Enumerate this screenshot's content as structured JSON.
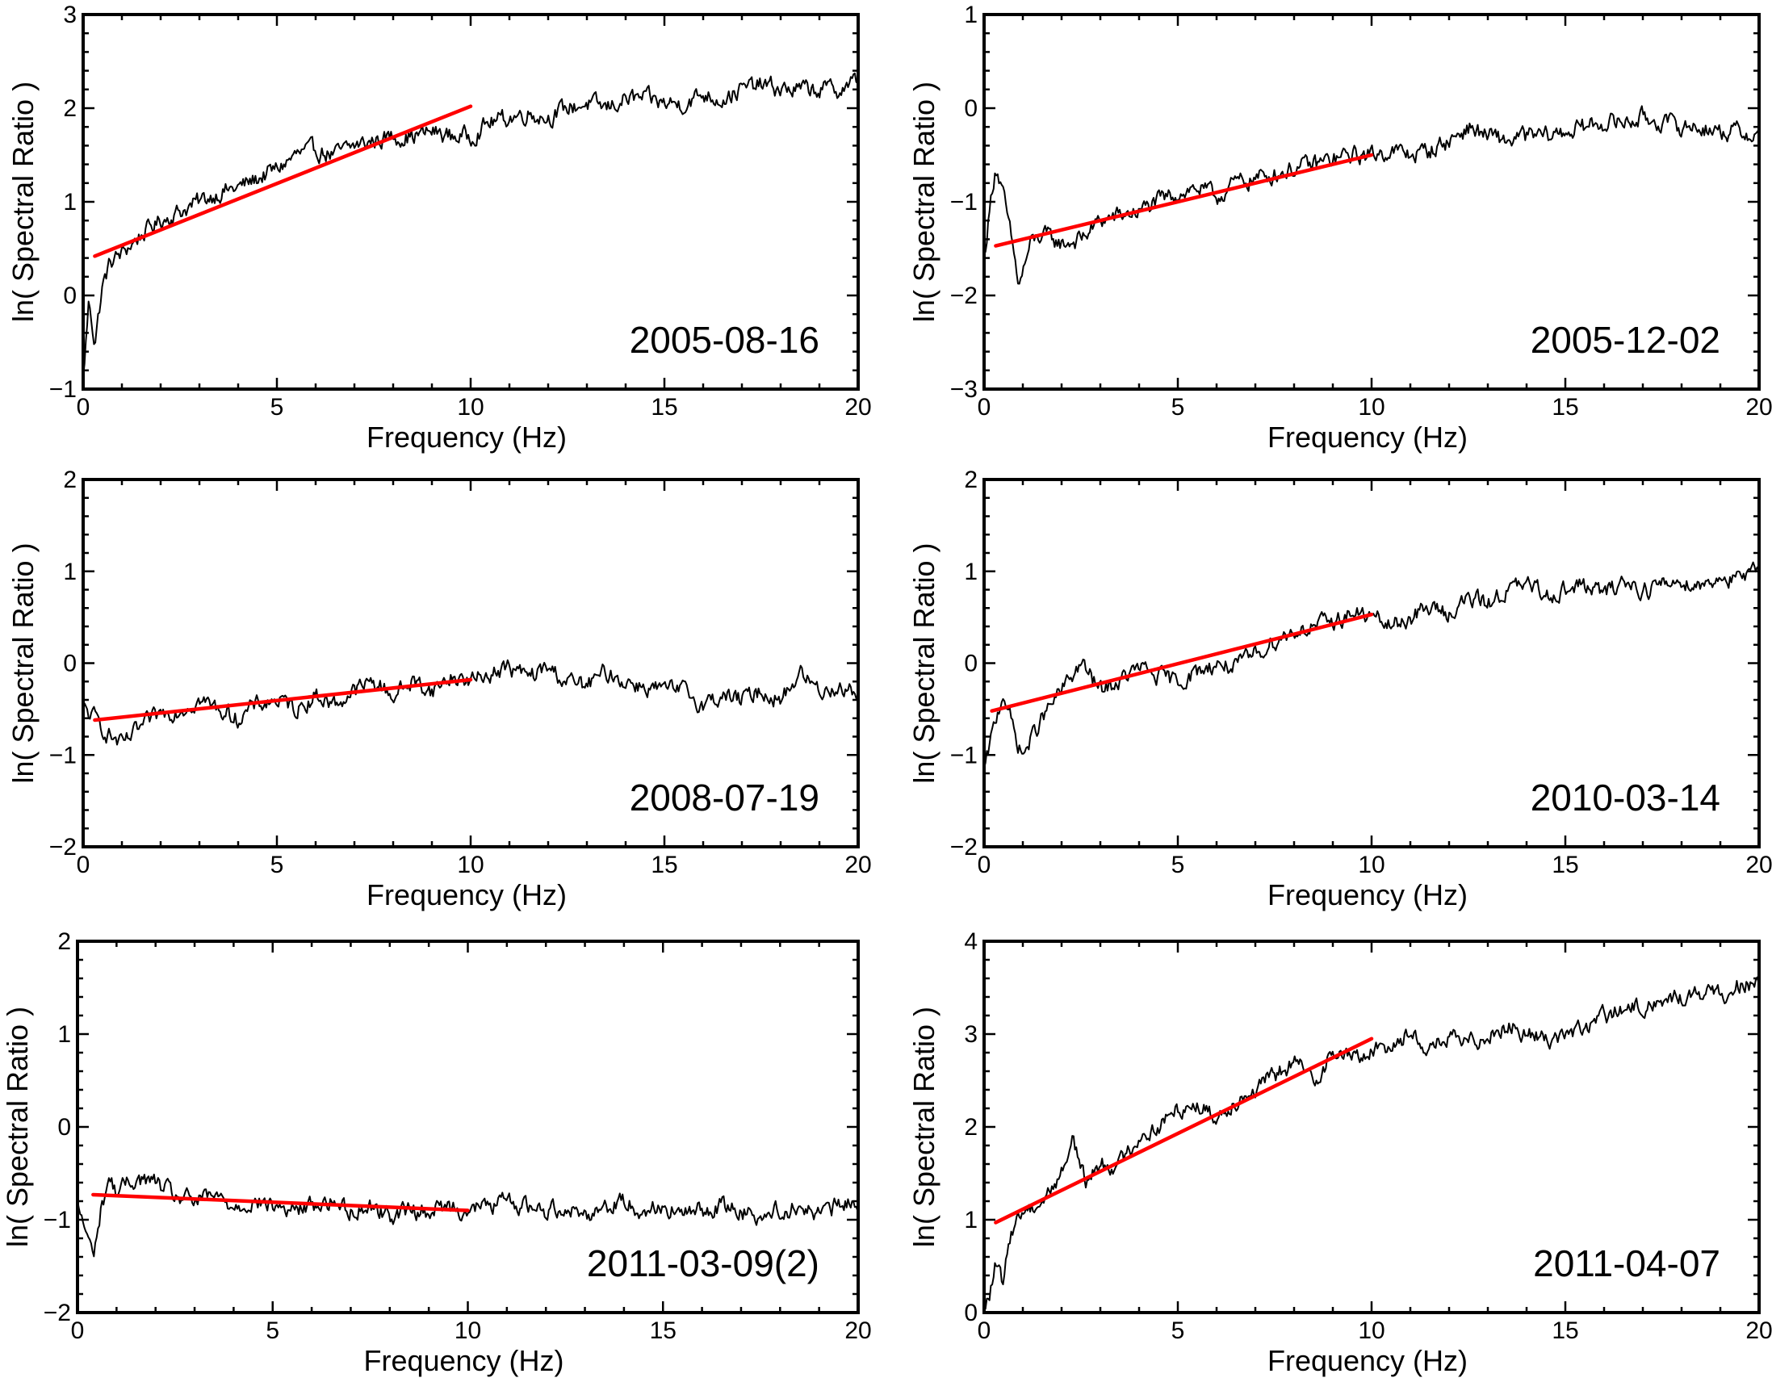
{
  "figure": {
    "xlabel": "Frequency (Hz)",
    "ylabel": "ln( Spectral Ratio )"
  },
  "chart_data": [
    {
      "type": "line",
      "annotation": "2005-08-16",
      "xlabel": "Frequency (Hz)",
      "ylabel": "ln( Spectral Ratio )",
      "xlim": [
        0,
        20
      ],
      "ylim": [
        -1,
        3
      ],
      "xticks": [
        0,
        5,
        10,
        15,
        20
      ],
      "yticks": [
        -1,
        0,
        1,
        2,
        3
      ],
      "grid": false,
      "series": [
        {
          "role": "spectral-ratio",
          "color": "#000000",
          "x": [
            0,
            0.15,
            0.3,
            0.5,
            0.7,
            1,
            1.5,
            2,
            2.5,
            3,
            3.5,
            4,
            4.5,
            5,
            5.5,
            6,
            6.5,
            7,
            7.5,
            8,
            8.5,
            9,
            9.5,
            10,
            10.5,
            11,
            11.5,
            12,
            12.5,
            13,
            13.5,
            14,
            14.5,
            15,
            15.5,
            16,
            16.5,
            17,
            17.5,
            18,
            18.5,
            19,
            19.5,
            20
          ],
          "y": [
            -0.9,
            -0.05,
            -0.5,
            0.1,
            0.35,
            0.45,
            0.65,
            0.8,
            0.9,
            1.0,
            1.1,
            1.15,
            1.25,
            1.35,
            1.5,
            1.55,
            1.5,
            1.6,
            1.65,
            1.7,
            1.7,
            1.75,
            1.7,
            1.7,
            1.85,
            1.9,
            1.95,
            1.9,
            2.0,
            2.05,
            2.0,
            2.1,
            2.1,
            2.05,
            2.05,
            2.15,
            2.1,
            2.2,
            2.25,
            2.2,
            2.2,
            2.2,
            2.2,
            2.3
          ]
        },
        {
          "role": "linear-fit",
          "color": "#ff0000",
          "x": [
            0.3,
            10
          ],
          "y": [
            0.42,
            2.02
          ]
        }
      ]
    },
    {
      "type": "line",
      "annotation": "2005-12-02",
      "xlabel": "Frequency (Hz)",
      "ylabel": "ln( Spectral Ratio )",
      "xlim": [
        0,
        20
      ],
      "ylim": [
        -3,
        1
      ],
      "xticks": [
        0,
        5,
        10,
        15,
        20
      ],
      "yticks": [
        -3,
        -2,
        -1,
        0,
        1
      ],
      "grid": false,
      "series": [
        {
          "role": "spectral-ratio",
          "color": "#000000",
          "x": [
            0,
            0.2,
            0.3,
            0.5,
            0.7,
            0.9,
            1.2,
            1.5,
            2,
            2.5,
            3,
            3.5,
            4,
            4.5,
            5,
            5.5,
            6,
            6.5,
            7,
            7.5,
            8,
            8.5,
            9,
            9.5,
            10,
            10.5,
            11,
            11.5,
            12,
            12.5,
            13,
            13.5,
            14,
            14.5,
            15,
            15.5,
            16,
            16.5,
            17,
            17.5,
            18,
            18.5,
            19,
            19.5,
            20
          ],
          "y": [
            -1.6,
            -0.9,
            -0.6,
            -0.95,
            -1.4,
            -1.9,
            -1.45,
            -1.35,
            -1.45,
            -1.4,
            -1.2,
            -1.15,
            -1.1,
            -1.0,
            -0.9,
            -0.85,
            -0.95,
            -0.8,
            -0.75,
            -0.7,
            -0.65,
            -0.6,
            -0.55,
            -0.5,
            -0.5,
            -0.45,
            -0.5,
            -0.45,
            -0.35,
            -0.2,
            -0.3,
            -0.35,
            -0.3,
            -0.3,
            -0.25,
            -0.2,
            -0.15,
            -0.15,
            -0.1,
            -0.15,
            -0.2,
            -0.2,
            -0.25,
            -0.25,
            -0.3
          ]
        },
        {
          "role": "linear-fit",
          "color": "#ff0000",
          "x": [
            0.3,
            10
          ],
          "y": [
            -1.47,
            -0.5
          ]
        }
      ]
    },
    {
      "type": "line",
      "annotation": "2008-07-19",
      "xlabel": "Frequency (Hz)",
      "ylabel": "ln( Spectral Ratio )",
      "xlim": [
        0,
        20
      ],
      "ylim": [
        -2,
        2
      ],
      "xticks": [
        0,
        5,
        10,
        15,
        20
      ],
      "yticks": [
        -2,
        -1,
        0,
        1,
        2
      ],
      "grid": false,
      "series": [
        {
          "role": "spectral-ratio",
          "color": "#000000",
          "x": [
            0,
            0.3,
            0.6,
            1,
            1.5,
            2,
            2.5,
            3,
            3.5,
            4,
            4.5,
            5,
            5.5,
            6,
            6.5,
            7,
            7.5,
            8,
            8.5,
            9,
            9.5,
            10,
            10.5,
            11,
            11.5,
            12,
            12.5,
            13,
            13.5,
            14,
            14.5,
            15,
            15.5,
            16,
            16.5,
            17,
            17.5,
            18,
            18.5,
            19,
            19.5,
            20
          ],
          "y": [
            -0.5,
            -0.6,
            -0.75,
            -0.9,
            -0.7,
            -0.55,
            -0.5,
            -0.4,
            -0.5,
            -0.6,
            -0.45,
            -0.4,
            -0.5,
            -0.35,
            -0.45,
            -0.3,
            -0.2,
            -0.35,
            -0.2,
            -0.3,
            -0.15,
            -0.2,
            -0.1,
            -0.05,
            -0.15,
            -0.05,
            -0.2,
            -0.25,
            -0.1,
            -0.2,
            -0.25,
            -0.3,
            -0.3,
            -0.45,
            -0.35,
            -0.4,
            -0.3,
            -0.4,
            -0.1,
            -0.3,
            -0.25,
            -0.35
          ]
        },
        {
          "role": "linear-fit",
          "color": "#ff0000",
          "x": [
            0.3,
            10
          ],
          "y": [
            -0.62,
            -0.18
          ]
        }
      ]
    },
    {
      "type": "line",
      "annotation": "2010-03-14",
      "xlabel": "Frequency (Hz)",
      "ylabel": "ln( Spectral Ratio )",
      "xlim": [
        0,
        20
      ],
      "ylim": [
        -2,
        2
      ],
      "xticks": [
        0,
        5,
        10,
        15,
        20
      ],
      "yticks": [
        -2,
        -1,
        0,
        1,
        2
      ],
      "grid": false,
      "series": [
        {
          "role": "spectral-ratio",
          "color": "#000000",
          "x": [
            0,
            0.2,
            0.5,
            0.8,
            1,
            1.5,
            2,
            2.5,
            3,
            3.5,
            4,
            4.5,
            5,
            5.5,
            6,
            6.5,
            7,
            7.5,
            8,
            8.5,
            9,
            9.5,
            10,
            10.5,
            11,
            11.5,
            12,
            12.5,
            13,
            13.5,
            14,
            14.5,
            15,
            15.5,
            16,
            16.5,
            17,
            17.5,
            18,
            18.5,
            19,
            19.5,
            20
          ],
          "y": [
            -1.2,
            -0.8,
            -0.3,
            -0.8,
            -1.0,
            -0.6,
            -0.3,
            0.0,
            -0.3,
            -0.2,
            -0.05,
            -0.15,
            -0.2,
            -0.1,
            0.0,
            -0.05,
            0.1,
            0.25,
            0.35,
            0.4,
            0.45,
            0.55,
            0.5,
            0.4,
            0.5,
            0.6,
            0.55,
            0.7,
            0.65,
            0.8,
            0.85,
            0.75,
            0.8,
            0.85,
            0.75,
            0.9,
            0.8,
            0.85,
            0.9,
            0.85,
            0.95,
            0.9,
            1.0
          ]
        },
        {
          "role": "linear-fit",
          "color": "#ff0000",
          "x": [
            0.2,
            10
          ],
          "y": [
            -0.52,
            0.53
          ]
        }
      ]
    },
    {
      "type": "line",
      "annotation": "2011-03-09(2)",
      "xlabel": "Frequency (Hz)",
      "ylabel": "ln( Spectral Ratio )",
      "xlim": [
        0,
        20
      ],
      "ylim": [
        -2,
        2
      ],
      "xticks": [
        0,
        5,
        10,
        15,
        20
      ],
      "yticks": [
        -2,
        -1,
        0,
        1,
        2
      ],
      "grid": false,
      "series": [
        {
          "role": "spectral-ratio",
          "color": "#000000",
          "x": [
            0,
            0.2,
            0.4,
            0.6,
            0.8,
            1,
            1.5,
            2,
            2.5,
            3,
            3.5,
            4,
            4.5,
            5,
            5.5,
            6,
            6.5,
            7,
            7.5,
            8,
            8.5,
            9,
            9.5,
            10,
            10.5,
            11,
            11.5,
            12,
            12.5,
            13,
            13.5,
            14,
            14.5,
            15,
            15.5,
            16,
            16.5,
            17,
            17.5,
            18,
            18.5,
            19,
            19.5,
            20
          ],
          "y": [
            -0.85,
            -1.1,
            -1.4,
            -0.9,
            -0.55,
            -0.7,
            -0.55,
            -0.6,
            -0.75,
            -0.8,
            -0.75,
            -0.85,
            -0.8,
            -0.85,
            -0.9,
            -0.85,
            -0.8,
            -0.9,
            -0.85,
            -0.95,
            -0.9,
            -0.9,
            -0.85,
            -0.9,
            -0.85,
            -0.8,
            -0.85,
            -0.9,
            -0.85,
            -0.95,
            -0.85,
            -0.8,
            -0.9,
            -0.85,
            -0.95,
            -0.9,
            -0.85,
            -0.9,
            -0.95,
            -0.9,
            -0.85,
            -0.95,
            -0.85,
            -0.8
          ]
        },
        {
          "role": "linear-fit",
          "color": "#ff0000",
          "x": [
            0.4,
            10
          ],
          "y": [
            -0.73,
            -0.9
          ]
        }
      ]
    },
    {
      "type": "line",
      "annotation": "2011-04-07",
      "xlabel": "Frequency (Hz)",
      "ylabel": "ln( Spectral Ratio )",
      "xlim": [
        0,
        20
      ],
      "ylim": [
        0,
        4
      ],
      "xticks": [
        0,
        5,
        10,
        15,
        20
      ],
      "yticks": [
        0,
        1,
        2,
        3,
        4
      ],
      "grid": false,
      "series": [
        {
          "role": "spectral-ratio",
          "color": "#000000",
          "x": [
            0,
            0.2,
            0.3,
            0.5,
            0.7,
            1,
            1.5,
            2,
            2.3,
            2.6,
            3,
            3.5,
            4,
            4.5,
            5,
            5.5,
            6,
            6.5,
            7,
            7.5,
            8,
            8.5,
            9,
            9.5,
            10,
            10.5,
            11,
            11.5,
            12,
            12.5,
            13,
            13.5,
            14,
            14.5,
            15,
            15.5,
            16,
            16.5,
            17,
            17.5,
            18,
            18.5,
            19,
            19.5,
            20
          ],
          "y": [
            0.0,
            0.3,
            0.5,
            0.3,
            0.9,
            1.1,
            1.2,
            1.5,
            1.9,
            1.4,
            1.6,
            1.6,
            1.9,
            2.0,
            2.2,
            2.25,
            2.1,
            2.3,
            2.4,
            2.55,
            2.7,
            2.5,
            2.8,
            2.75,
            2.8,
            2.9,
            3.0,
            2.85,
            2.95,
            2.9,
            3.0,
            3.1,
            3.0,
            2.95,
            3.0,
            3.05,
            3.2,
            3.25,
            3.3,
            3.35,
            3.4,
            3.45,
            3.4,
            3.55,
            3.5
          ]
        },
        {
          "role": "linear-fit",
          "color": "#ff0000",
          "x": [
            0.3,
            10
          ],
          "y": [
            0.97,
            2.95
          ]
        }
      ]
    }
  ]
}
